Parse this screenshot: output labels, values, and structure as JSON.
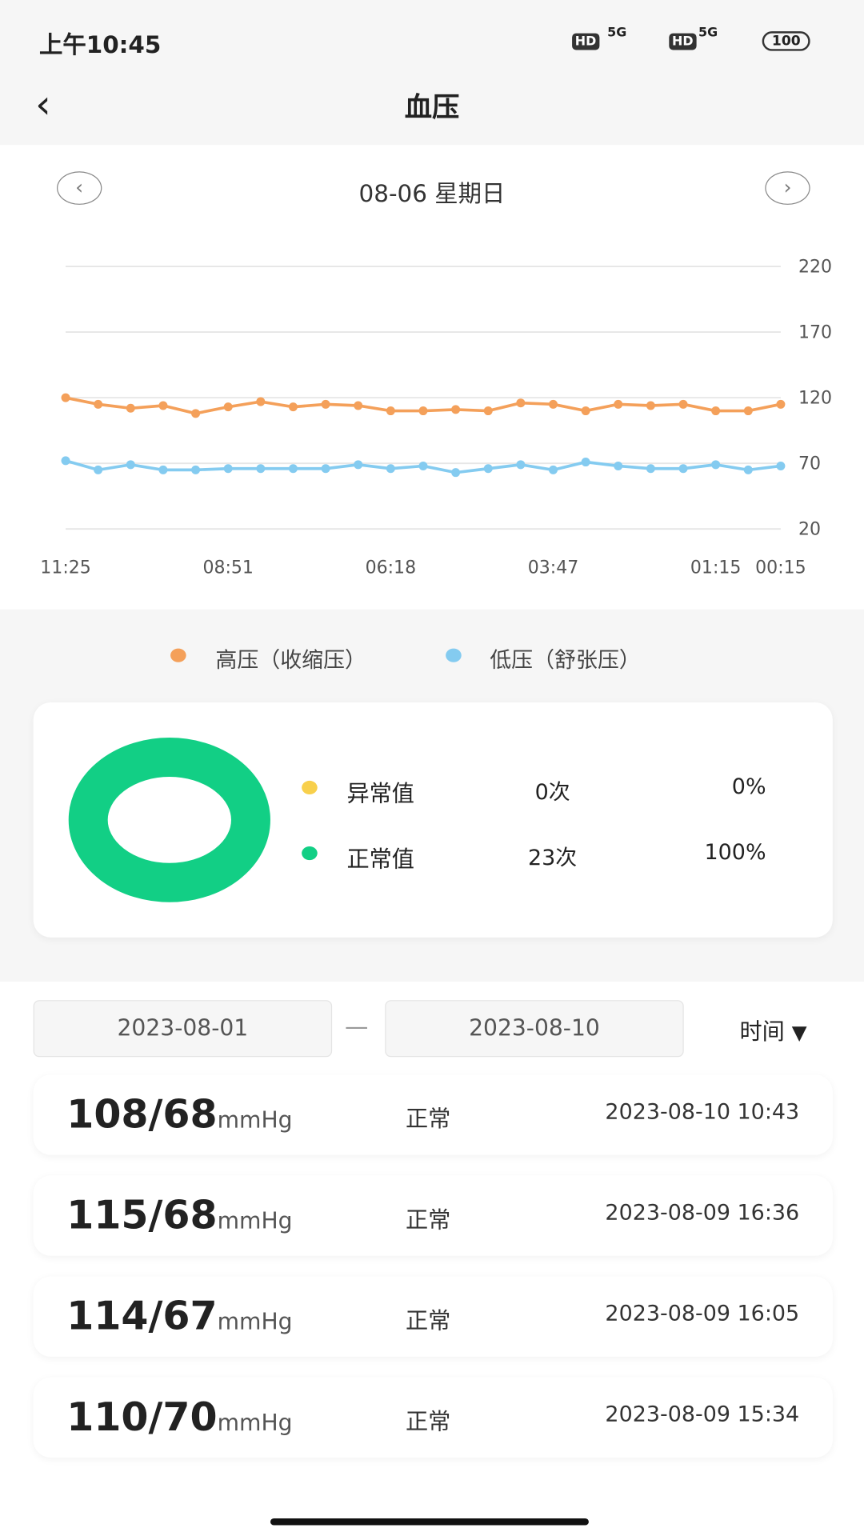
{
  "status_bar": {
    "time": "上午10:45",
    "hd1": "HD",
    "net1": "5G",
    "hd2": "HD",
    "net2": "5G",
    "battery": "100"
  },
  "header": {
    "title": "血压"
  },
  "date_nav": {
    "date": "08-06 星期日"
  },
  "chart_data": [
    {
      "type": "line",
      "categories": [
        "11:25",
        null,
        null,
        null,
        null,
        "08:51",
        null,
        null,
        null,
        null,
        "06:18",
        null,
        null,
        null,
        null,
        "03:47",
        null,
        null,
        null,
        null,
        "01:15",
        null,
        "00:15"
      ],
      "series": [
        {
          "name": "高压（收缩压）",
          "color": "#f4a05a",
          "values": [
            120,
            115,
            112,
            114,
            108,
            113,
            117,
            113,
            115,
            114,
            110,
            110,
            111,
            110,
            116,
            115,
            110,
            115,
            114,
            115,
            110,
            110,
            115
          ]
        },
        {
          "name": "低压（舒张压）",
          "color": "#84cbf0",
          "values": [
            72,
            65,
            69,
            65,
            65,
            66,
            66,
            66,
            66,
            69,
            66,
            68,
            63,
            66,
            69,
            65,
            71,
            68,
            66,
            66,
            69,
            65,
            68
          ]
        }
      ],
      "ylim": [
        20,
        220
      ],
      "yticks": [
        20,
        70,
        120,
        170,
        220
      ],
      "grid": true
    },
    {
      "type": "pie",
      "categories": [
        "异常值",
        "正常值"
      ],
      "colors": [
        "#f8d04c",
        "#12cf85"
      ],
      "values": [
        0,
        100
      ],
      "value_labels": [
        "0%",
        "100%"
      ],
      "counts": [
        "0次",
        "23次"
      ]
    }
  ],
  "filter": {
    "start": "2023-08-01",
    "separator": "—",
    "end": "2023-08-10",
    "sort": "时间"
  },
  "records": [
    {
      "value": "108/68",
      "unit": "mmHg",
      "status": "正常",
      "time": "2023-08-10 10:43"
    },
    {
      "value": "115/68",
      "unit": "mmHg",
      "status": "正常",
      "time": "2023-08-09 16:36"
    },
    {
      "value": "114/67",
      "unit": "mmHg",
      "status": "正常",
      "time": "2023-08-09 16:05"
    },
    {
      "value": "110/70",
      "unit": "mmHg",
      "status": "正常",
      "time": "2023-08-09 15:34"
    }
  ]
}
